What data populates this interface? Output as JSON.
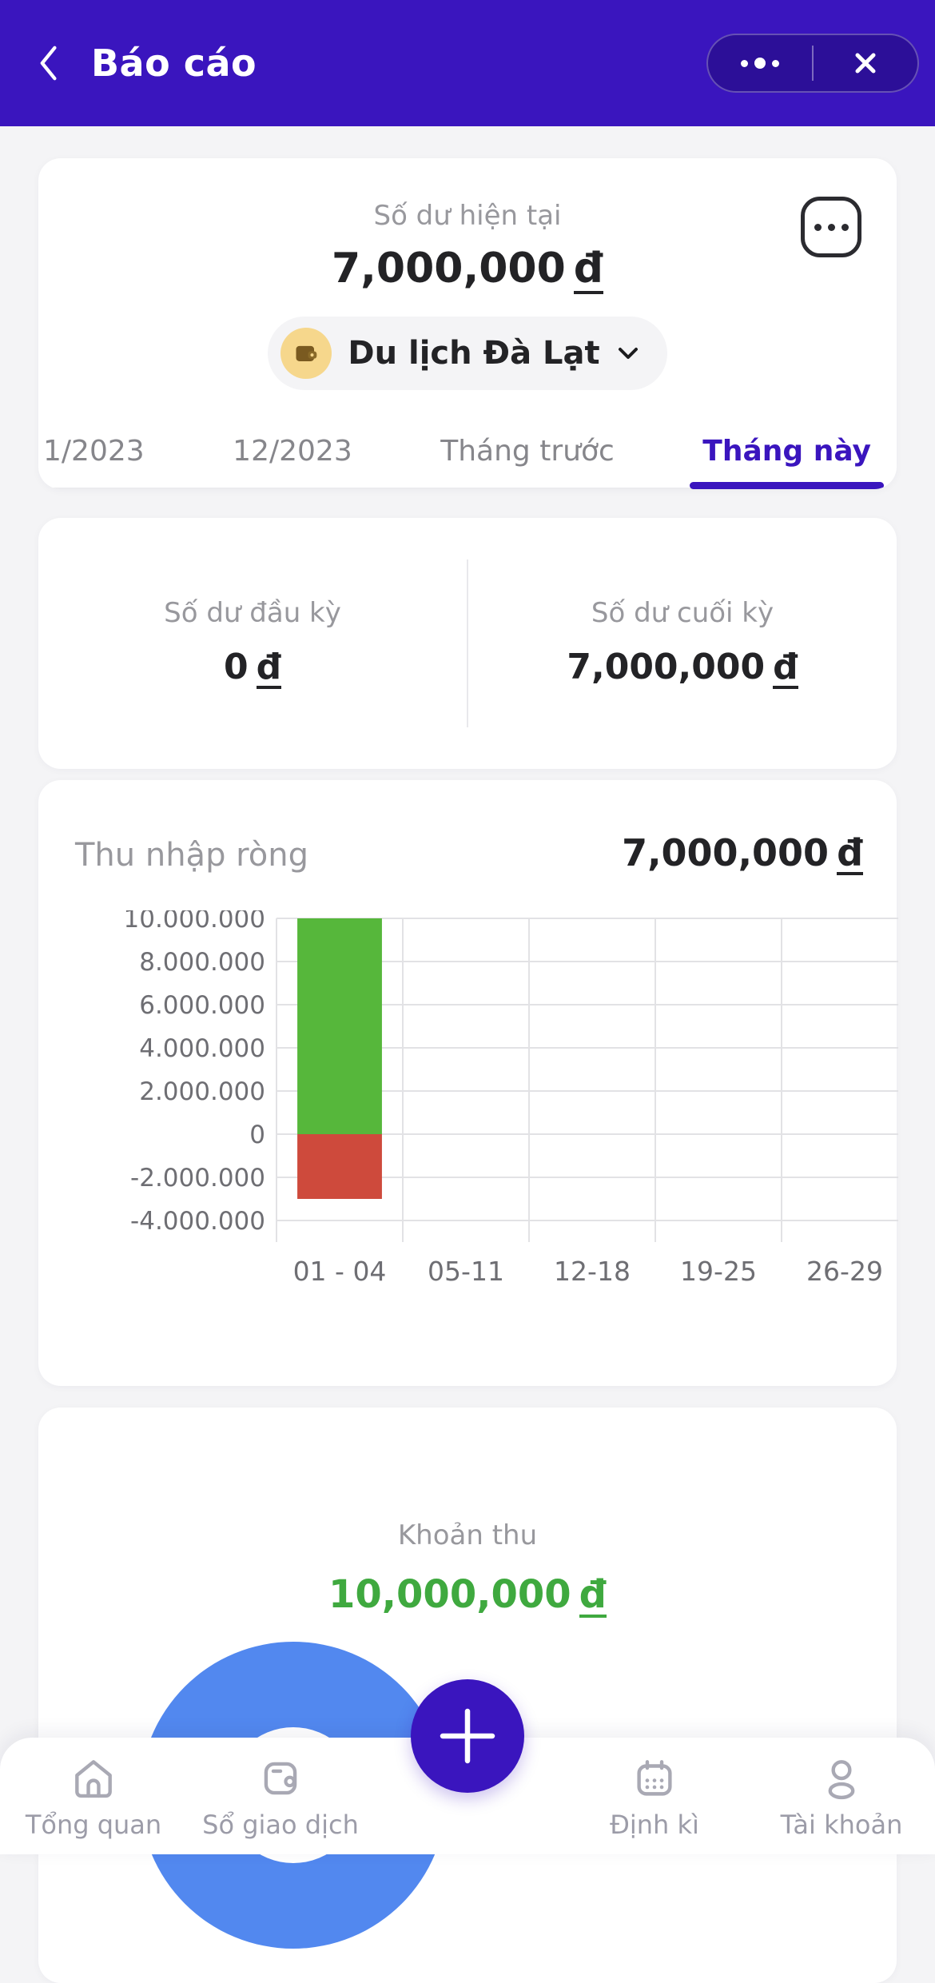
{
  "header": {
    "title": "Báo cáo"
  },
  "balance_card": {
    "label": "Số dư hiện tại",
    "amount": "7,000,000",
    "currency": "đ",
    "wallet_name": "Du lịch Đà Lạt"
  },
  "tabs": [
    {
      "label": "1/2023",
      "active": false
    },
    {
      "label": "12/2023",
      "active": false
    },
    {
      "label": "Tháng trước",
      "active": false
    },
    {
      "label": "Tháng này",
      "active": true
    }
  ],
  "period_card": {
    "begin_label": "Số dư đầu kỳ",
    "begin_amount": "0",
    "end_label": "Số dư cuối kỳ",
    "end_amount": "7,000,000",
    "currency": "đ"
  },
  "net_income_card": {
    "title": "Thu nhập ròng",
    "amount": "7,000,000",
    "currency": "đ"
  },
  "chart_data": {
    "type": "bar",
    "title": "Thu nhập ròng",
    "categories": [
      "01 - 04",
      "05-11",
      "12-18",
      "19-25",
      "26-29"
    ],
    "series": [
      {
        "name": "income",
        "color": "#56b73b",
        "values": [
          10000000,
          0,
          0,
          0,
          0
        ]
      },
      {
        "name": "expense",
        "color": "#ce4a3c",
        "values": [
          -3000000,
          0,
          0,
          0,
          0
        ]
      }
    ],
    "stack_baseline": 0,
    "yticks": [
      10000000,
      8000000,
      6000000,
      4000000,
      2000000,
      0,
      -2000000,
      -4000000
    ],
    "ytick_labels": [
      "10.000.000",
      "8.000.000",
      "6.000.000",
      "4.000.000",
      "2.000.000",
      "0",
      "-2.000.000",
      "-4.000.000"
    ],
    "ylim": [
      -5000000,
      10000000
    ],
    "grid": true,
    "legend": "none"
  },
  "income_card": {
    "title": "Khoản thu",
    "amount": "10,000,000",
    "currency": "đ"
  },
  "fab": {
    "label": "+"
  },
  "bottom_nav": {
    "items": [
      {
        "label": "Tổng quan"
      },
      {
        "label": "Sổ giao dịch"
      },
      {
        "label": "Định kì"
      },
      {
        "label": "Tài khoản"
      }
    ]
  },
  "colors": {
    "accent": "#3a15be",
    "page": "#f4f4f6",
    "green-text": "#3fa93f",
    "income-bar": "#56b73b",
    "expense-bar": "#ce4a3c",
    "donut-blue": "#5288ef"
  }
}
